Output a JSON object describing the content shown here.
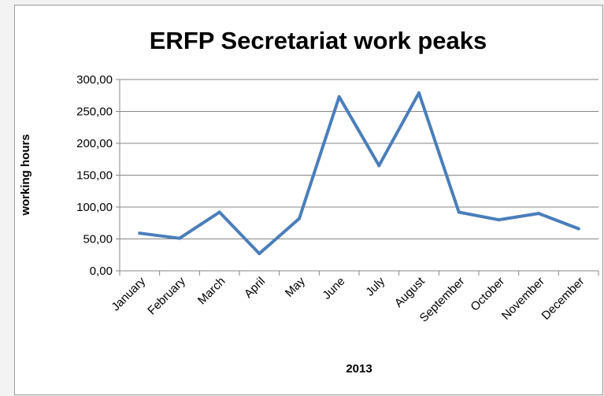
{
  "chart_data": {
    "type": "line",
    "title": "ERFP Secretariat work peaks",
    "xlabel": "2013",
    "ylabel": "working hours",
    "categories": [
      "January",
      "February",
      "March",
      "April",
      "May",
      "June",
      "July",
      "August",
      "September",
      "October",
      "November",
      "December"
    ],
    "series": [
      {
        "values": [
          59,
          51,
          92,
          27,
          82,
          273,
          165,
          279,
          92,
          80,
          90,
          66
        ],
        "color": "#4a7ebb"
      }
    ],
    "ylim": [
      0,
      300
    ],
    "yticks": [
      "0,00",
      "50,00",
      "100,00",
      "150,00",
      "200,00",
      "250,00",
      "300,00"
    ],
    "grid": true,
    "legend": "none"
  }
}
